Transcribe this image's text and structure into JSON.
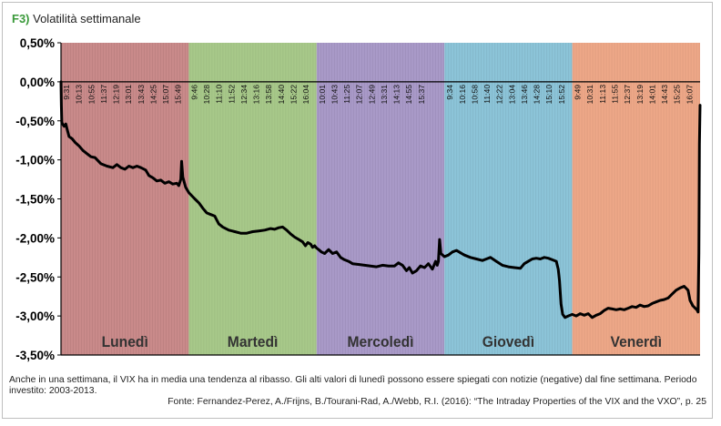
{
  "header": {
    "tag": "F3)",
    "title": "Volatilità settimanale"
  },
  "chart_data": {
    "type": "line",
    "title": "Volatilità settimanale",
    "xlabel": "",
    "ylabel": "",
    "ylim": [
      -3.5,
      0.5
    ],
    "yticks": [
      0.5,
      0.0,
      -0.5,
      -1.0,
      -1.5,
      -2.0,
      -2.5,
      -3.0,
      -3.5
    ],
    "ytick_labels": [
      "0,50%",
      "0,00%",
      "-0,50%",
      "-1,00%",
      "-1,50%",
      "-2,00%",
      "-2,50%",
      "-3,00%",
      "-3,50%"
    ],
    "grid": false,
    "days": [
      {
        "name": "Lunedì",
        "color": "#c98a8a",
        "times": [
          "9:31",
          "10:13",
          "10:55",
          "11:37",
          "12:19",
          "13:01",
          "13:43",
          "14:25",
          "15:07",
          "15:49"
        ]
      },
      {
        "name": "Martedì",
        "color": "#a8c98a",
        "times": [
          "9:46",
          "10:28",
          "11:10",
          "11:52",
          "12:34",
          "13:16",
          "13:58",
          "14:40",
          "15:22",
          "16:04"
        ]
      },
      {
        "name": "Mercoledì",
        "color": "#a99ac8",
        "times": [
          "10:01",
          "10:43",
          "11:25",
          "12:07",
          "12:49",
          "13:31",
          "14:13",
          "14:55",
          "15:37"
        ]
      },
      {
        "name": "Giovedì",
        "color": "#8cc4d8",
        "times": [
          "9:34",
          "10:16",
          "10:58",
          "11:40",
          "12:22",
          "13:04",
          "13:46",
          "14:28",
          "15:10",
          "15:52"
        ]
      },
      {
        "name": "Venerdì",
        "color": "#eea888",
        "times": [
          "9:49",
          "10:31",
          "11:13",
          "11:55",
          "12:37",
          "13:19",
          "14:01",
          "14:43",
          "15:25",
          "16:07"
        ]
      }
    ],
    "series": [
      {
        "values": [
          [
            0.0,
            0.0
          ],
          [
            0.01,
            -0.3
          ],
          [
            0.02,
            -0.52
          ],
          [
            0.05,
            -0.55
          ],
          [
            0.08,
            -0.57
          ],
          [
            0.12,
            -0.54
          ],
          [
            0.16,
            -0.62
          ],
          [
            0.2,
            -0.7
          ],
          [
            0.28,
            -0.73
          ],
          [
            0.36,
            -0.78
          ],
          [
            0.45,
            -0.82
          ],
          [
            0.55,
            -0.88
          ],
          [
            0.65,
            -0.92
          ],
          [
            0.75,
            -0.96
          ],
          [
            0.85,
            -0.97
          ],
          [
            1.0,
            -1.05
          ],
          [
            1.15,
            -1.08
          ],
          [
            1.3,
            -1.1
          ],
          [
            1.4,
            -1.06
          ],
          [
            1.5,
            -1.1
          ],
          [
            1.6,
            -1.12
          ],
          [
            1.7,
            -1.08
          ],
          [
            1.8,
            -1.1
          ],
          [
            1.9,
            -1.08
          ],
          [
            2.0,
            -1.1
          ],
          [
            2.12,
            -1.13
          ],
          [
            2.2,
            -1.2
          ],
          [
            2.3,
            -1.23
          ],
          [
            2.4,
            -1.27
          ],
          [
            2.5,
            -1.26
          ],
          [
            2.6,
            -1.3
          ],
          [
            2.7,
            -1.28
          ],
          [
            2.8,
            -1.31
          ],
          [
            2.9,
            -1.3
          ],
          [
            2.95,
            -1.33
          ],
          [
            3.0,
            -1.25
          ],
          [
            3.02,
            -1.02
          ],
          [
            3.05,
            -1.22
          ],
          [
            3.12,
            -1.35
          ],
          [
            3.2,
            -1.42
          ],
          [
            3.35,
            -1.5
          ],
          [
            3.45,
            -1.55
          ],
          [
            3.55,
            -1.62
          ],
          [
            3.65,
            -1.68
          ],
          [
            3.75,
            -1.7
          ],
          [
            3.85,
            -1.72
          ],
          [
            3.95,
            -1.82
          ],
          [
            4.05,
            -1.86
          ],
          [
            4.2,
            -1.9
          ],
          [
            4.35,
            -1.92
          ],
          [
            4.5,
            -1.94
          ],
          [
            4.65,
            -1.94
          ],
          [
            4.8,
            -1.92
          ],
          [
            4.95,
            -1.91
          ],
          [
            5.1,
            -1.9
          ],
          [
            5.25,
            -1.88
          ],
          [
            5.35,
            -1.89
          ],
          [
            5.45,
            -1.87
          ],
          [
            5.55,
            -1.86
          ],
          [
            5.65,
            -1.9
          ],
          [
            5.75,
            -1.95
          ],
          [
            5.85,
            -1.99
          ],
          [
            5.95,
            -2.02
          ],
          [
            6.05,
            -2.05
          ],
          [
            6.12,
            -2.1
          ],
          [
            6.18,
            -2.06
          ],
          [
            6.25,
            -2.08
          ],
          [
            6.3,
            -2.12
          ],
          [
            6.35,
            -2.1
          ],
          [
            6.4,
            -2.13
          ],
          [
            6.45,
            -2.15
          ],
          [
            6.52,
            -2.18
          ],
          [
            6.6,
            -2.2
          ],
          [
            6.7,
            -2.15
          ],
          [
            6.8,
            -2.2
          ],
          [
            6.9,
            -2.18
          ],
          [
            7.0,
            -2.25
          ],
          [
            7.1,
            -2.28
          ],
          [
            7.2,
            -2.3
          ],
          [
            7.3,
            -2.33
          ],
          [
            7.45,
            -2.34
          ],
          [
            7.6,
            -2.35
          ],
          [
            7.75,
            -2.36
          ],
          [
            7.9,
            -2.37
          ],
          [
            8.05,
            -2.35
          ],
          [
            8.2,
            -2.36
          ],
          [
            8.35,
            -2.36
          ],
          [
            8.45,
            -2.32
          ],
          [
            8.55,
            -2.35
          ],
          [
            8.65,
            -2.42
          ],
          [
            8.72,
            -2.38
          ],
          [
            8.8,
            -2.45
          ],
          [
            8.9,
            -2.42
          ],
          [
            9.0,
            -2.36
          ],
          [
            9.1,
            -2.38
          ],
          [
            9.2,
            -2.33
          ],
          [
            9.3,
            -2.4
          ],
          [
            9.38,
            -2.3
          ],
          [
            9.42,
            -2.35
          ],
          [
            9.45,
            -2.3
          ],
          [
            9.48,
            -2.02
          ],
          [
            9.51,
            -2.2
          ],
          [
            9.6,
            -2.24
          ],
          [
            9.7,
            -2.22
          ],
          [
            9.8,
            -2.18
          ],
          [
            9.9,
            -2.16
          ],
          [
            10.0,
            -2.19
          ],
          [
            10.1,
            -2.22
          ],
          [
            10.25,
            -2.25
          ],
          [
            10.4,
            -2.27
          ],
          [
            10.55,
            -2.29
          ],
          [
            10.65,
            -2.27
          ],
          [
            10.75,
            -2.25
          ],
          [
            10.9,
            -2.3
          ],
          [
            11.05,
            -2.35
          ],
          [
            11.2,
            -2.37
          ],
          [
            11.35,
            -2.38
          ],
          [
            11.5,
            -2.39
          ],
          [
            11.6,
            -2.33
          ],
          [
            11.7,
            -2.3
          ],
          [
            11.8,
            -2.27
          ],
          [
            11.9,
            -2.26
          ],
          [
            12.0,
            -2.27
          ],
          [
            12.1,
            -2.25
          ],
          [
            12.2,
            -2.26
          ],
          [
            12.3,
            -2.28
          ],
          [
            12.4,
            -2.3
          ],
          [
            12.45,
            -2.4
          ],
          [
            12.48,
            -2.55
          ],
          [
            12.52,
            -2.85
          ],
          [
            12.56,
            -2.98
          ],
          [
            12.62,
            -3.02
          ],
          [
            12.7,
            -3.0
          ],
          [
            12.8,
            -2.98
          ],
          [
            12.9,
            -3.0
          ],
          [
            13.0,
            -2.97
          ],
          [
            13.1,
            -2.99
          ],
          [
            13.2,
            -2.97
          ],
          [
            13.3,
            -3.02
          ],
          [
            13.4,
            -2.99
          ],
          [
            13.5,
            -2.97
          ],
          [
            13.6,
            -2.93
          ],
          [
            13.7,
            -2.9
          ],
          [
            13.8,
            -2.91
          ],
          [
            13.9,
            -2.92
          ],
          [
            14.0,
            -2.91
          ],
          [
            14.1,
            -2.92
          ],
          [
            14.2,
            -2.9
          ],
          [
            14.3,
            -2.88
          ],
          [
            14.4,
            -2.89
          ],
          [
            14.5,
            -2.86
          ],
          [
            14.6,
            -2.88
          ],
          [
            14.7,
            -2.87
          ],
          [
            14.8,
            -2.84
          ],
          [
            14.9,
            -2.82
          ],
          [
            15.0,
            -2.8
          ],
          [
            15.1,
            -2.79
          ],
          [
            15.2,
            -2.77
          ],
          [
            15.3,
            -2.72
          ],
          [
            15.4,
            -2.67
          ],
          [
            15.5,
            -2.64
          ],
          [
            15.6,
            -2.62
          ],
          [
            15.7,
            -2.67
          ],
          [
            15.75,
            -2.8
          ],
          [
            15.82,
            -2.87
          ],
          [
            15.88,
            -2.9
          ],
          [
            15.92,
            -2.92
          ],
          [
            15.95,
            -2.95
          ],
          [
            15.97,
            -2.2
          ],
          [
            15.985,
            -0.8
          ],
          [
            16.0,
            -0.3
          ]
        ]
      }
    ]
  },
  "footnote": "Anche in una settimana, il VIX ha in media una tendenza al ribasso. Gli alti valori di lunedì possono essere spiegati con notizie (negative) dal fine settimana. Periodo investito: 2003-2013.",
  "source": "Fonte: Fernandez-Perez, A./Frijns, B./Tourani-Rad, A./Webb, R.I. (2016): “The Intraday Properties of the VIX and the VXO”, p. 25",
  "colors": {
    "title_tag": "#3a9a3a",
    "line": "#000000",
    "axis": "#000000"
  }
}
